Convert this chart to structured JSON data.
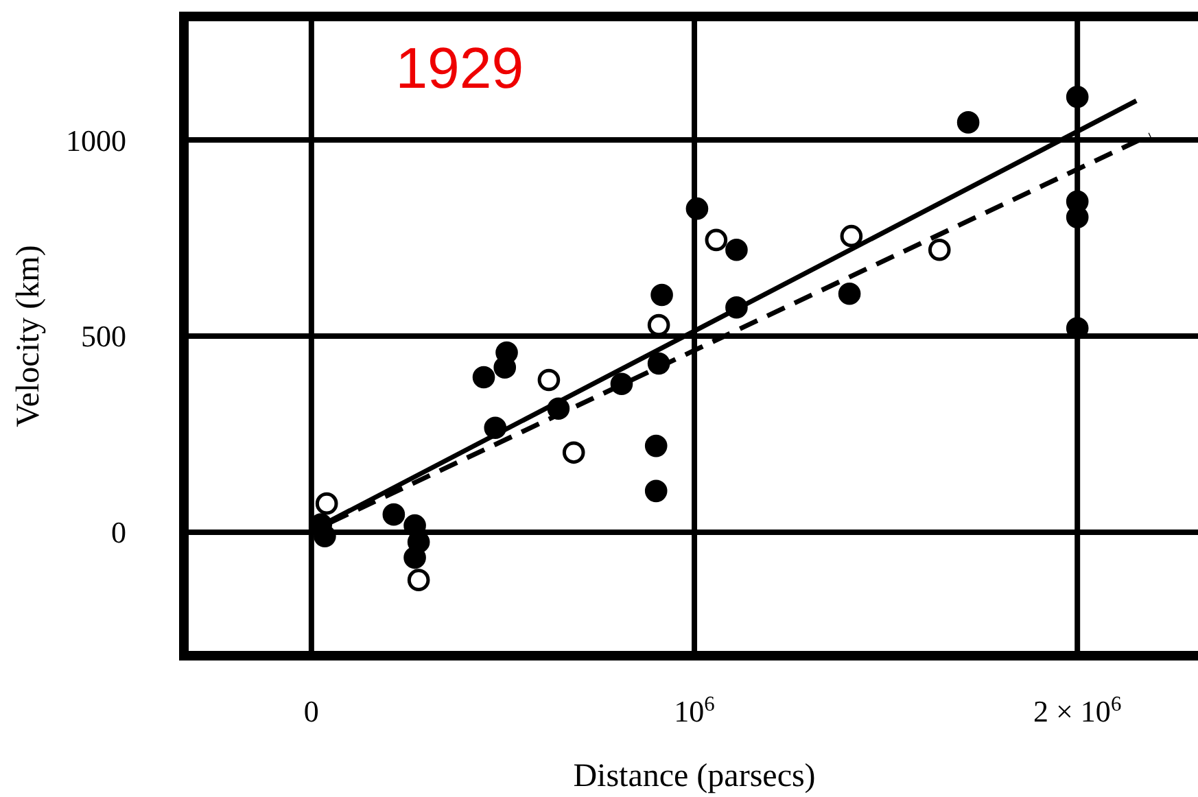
{
  "chart_data": {
    "type": "scatter",
    "xlabel": "Distance (parsecs)",
    "ylabel": "Velocity (km)",
    "annotations": [
      "1929"
    ],
    "xlim": [
      -333000,
      2315000
    ],
    "ylim": [
      -315,
      1315
    ],
    "xticks": [
      {
        "value": 0,
        "label": "0"
      },
      {
        "value": 1000000,
        "label": "10$^{6}$"
      },
      {
        "value": 2000000,
        "label": "2 × 10$^{6}$"
      }
    ],
    "yticks": [
      0,
      500,
      1000
    ],
    "grid": true,
    "series": [
      {
        "color": "#000000",
        "marker": "circle",
        "x": [
          25000,
          35000,
          215000,
          270000,
          280000,
          270000,
          450000,
          510000,
          505000,
          480000,
          645000,
          810000,
          915000,
          907000,
          900000,
          900000,
          1007000,
          1110000,
          1110000,
          1405000,
          1715000,
          2000000,
          2000000,
          2000000,
          2000000
        ],
        "values": [
          20,
          -10,
          45,
          17,
          -25,
          -65,
          395,
          458,
          420,
          266,
          315,
          378,
          605,
          430,
          220,
          105,
          825,
          720,
          573,
          608,
          1045,
          1110,
          843,
          803,
          520
        ]
      },
      {
        "color": "#ffffff",
        "marker": "circle",
        "x": [
          280000,
          40000,
          620000,
          685000,
          907000,
          1057000,
          1410000,
          1640000
        ],
        "values": [
          -122,
          73,
          388,
          203,
          528,
          745,
          755,
          720
        ]
      },
      {
        "type": "line",
        "color": "#000000",
        "line_style": "solid",
        "x": [
          47000,
          2154000
        ],
        "values": [
          28,
          1100
        ]
      },
      {
        "type": "line",
        "color": "#000000",
        "line_style": "dashed",
        "x": [
          50000,
          2190000
        ],
        "values": [
          25,
          1013
        ]
      }
    ]
  }
}
